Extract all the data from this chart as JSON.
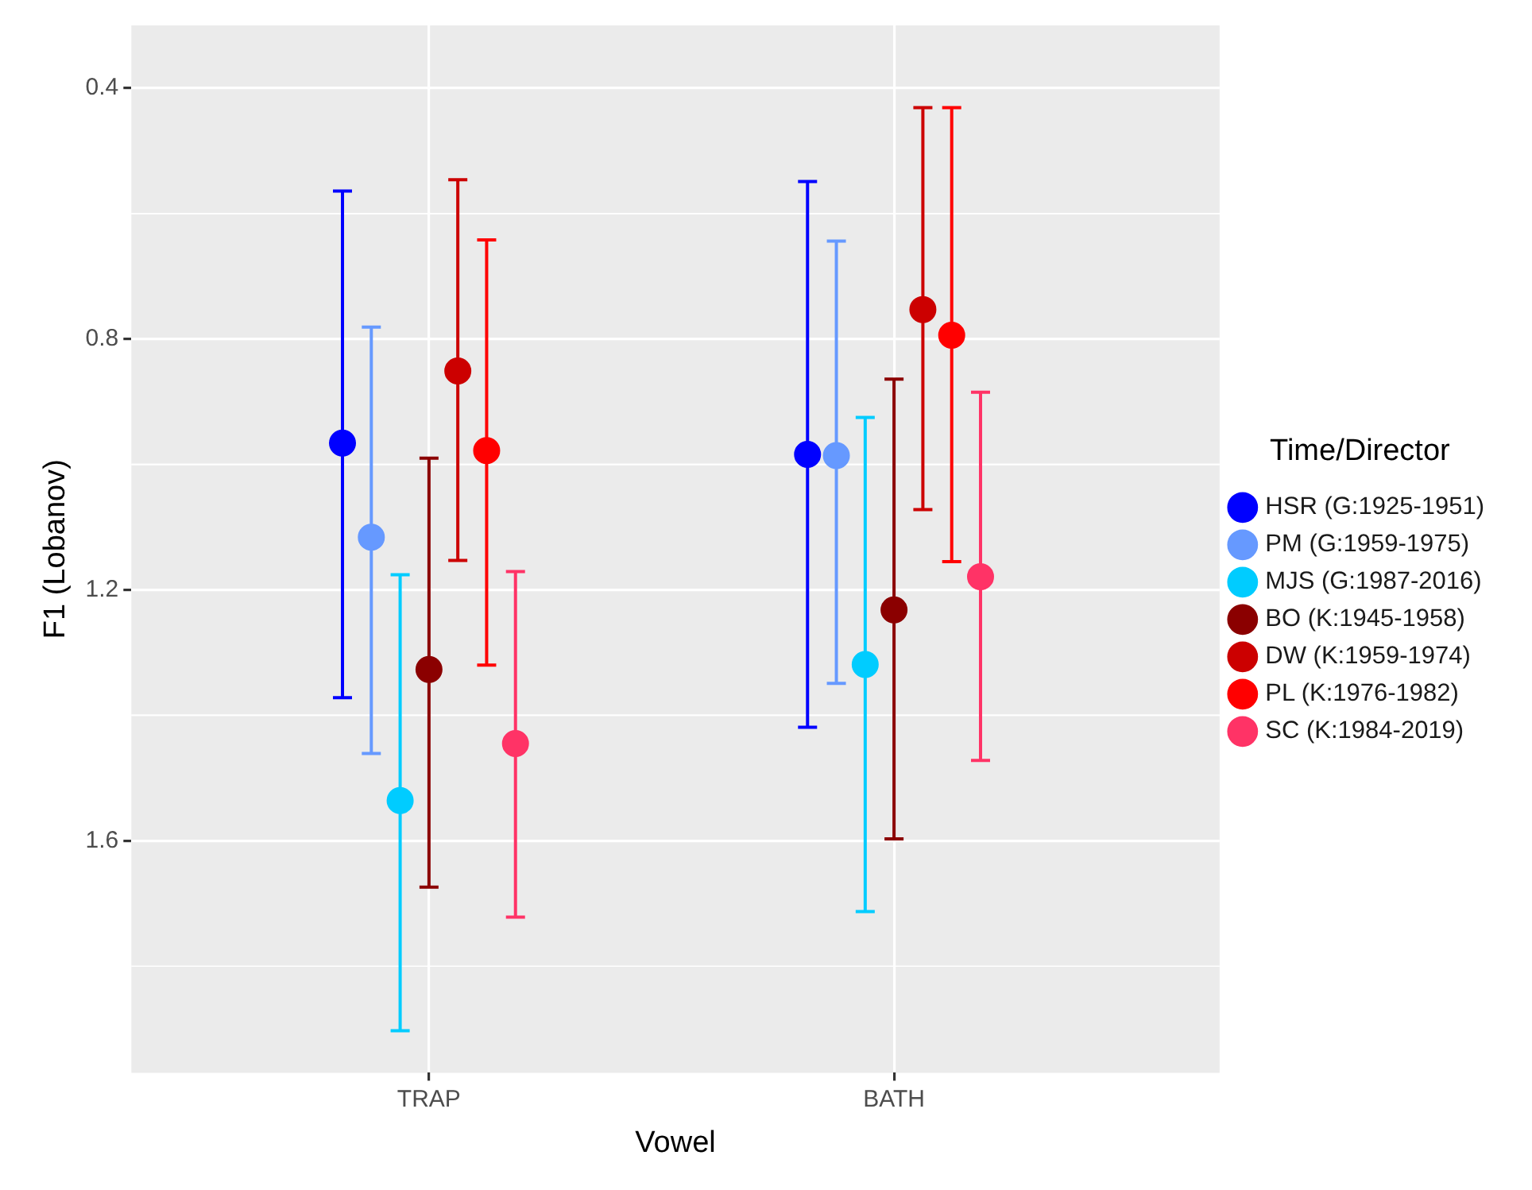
{
  "chart_data": {
    "type": "scatter",
    "xlabel": "Vowel",
    "ylabel": "F1 (Lobanov)",
    "legend_title": "Time/Director",
    "categories": [
      "TRAP",
      "BATH"
    ],
    "ylim": [
      1.97,
      0.3
    ],
    "yticks": [
      0.4,
      0.8,
      1.2,
      1.6
    ],
    "grid": true,
    "legend": "right",
    "marker": "circle",
    "series": [
      {
        "name": "HSR (G:1925-1951)",
        "color": "#0000ff",
        "values": [
          0.966,
          0.984
        ],
        "errors": [
          [
            0.564,
            1.372
          ],
          [
            0.549,
            1.419
          ]
        ]
      },
      {
        "name": "PM (G:1959-1975)",
        "color": "#6699ff",
        "values": [
          1.116,
          0.986
        ],
        "errors": [
          [
            0.781,
            1.461
          ],
          [
            0.644,
            1.349
          ]
        ]
      },
      {
        "name": "MJS (G:1987-2016)",
        "color": "#00ccff",
        "values": [
          1.536,
          1.319
        ],
        "errors": [
          [
            1.176,
            1.903
          ],
          [
            0.925,
            1.713
          ]
        ]
      },
      {
        "name": "BO (K:1945-1958)",
        "color": "#8b0000",
        "values": [
          1.327,
          1.232
        ],
        "errors": [
          [
            0.99,
            1.674
          ],
          [
            0.864,
            1.597
          ]
        ]
      },
      {
        "name": "DW (K:1959-1974)",
        "color": "#cc0000",
        "values": [
          0.851,
          0.753
        ],
        "errors": [
          [
            0.546,
            1.153
          ],
          [
            0.431,
            1.072
          ]
        ]
      },
      {
        "name": "PL (K:1976-1982)",
        "color": "#ff0000",
        "values": [
          0.978,
          0.794
        ],
        "errors": [
          [
            0.642,
            1.32
          ],
          [
            0.431,
            1.155
          ]
        ]
      },
      {
        "name": "SC (K:1984-2019)",
        "color": "#ff3366",
        "values": [
          1.445,
          1.179
        ],
        "errors": [
          [
            1.171,
            1.722
          ],
          [
            0.885,
            1.472
          ]
        ]
      }
    ]
  }
}
